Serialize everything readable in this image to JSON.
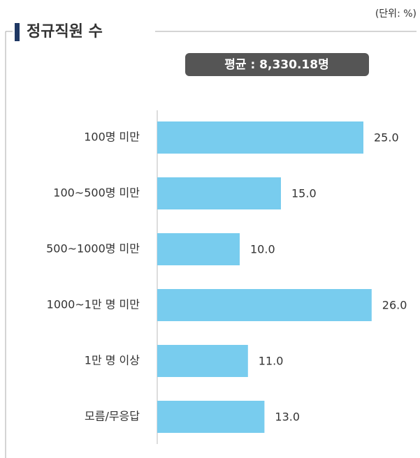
{
  "chart_data": {
    "type": "hbar",
    "title": "정규직원 수",
    "unit": "(단위: %)",
    "annotation": "평균 : 8,330.18명",
    "categories": [
      "100명 미만",
      "100~500명 미만",
      "500~1000명 미만",
      "1000~1만 명 미만",
      "1만 명 이상",
      "모름/무응답"
    ],
    "values": [
      25,
      15,
      10,
      26,
      11,
      13
    ],
    "value_labels": [
      "25.0",
      "15.0",
      "10.0",
      "26.0",
      "11.0",
      "13.0"
    ],
    "color": "#78ccee",
    "xlim": [
      0,
      30
    ]
  }
}
